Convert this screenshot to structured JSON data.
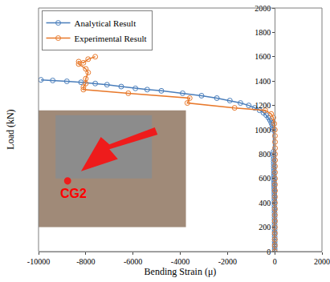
{
  "chart_data": {
    "type": "line",
    "x_label": "Bending Strain (μ)",
    "y_label": "Load (kN)",
    "xlim": [
      -10000,
      2000
    ],
    "xticks": [
      -10000,
      -8000,
      -6000,
      -4000,
      -2000,
      0,
      2000
    ],
    "ylim": [
      0,
      2000
    ],
    "yticks": [
      0,
      200,
      400,
      600,
      800,
      1000,
      1200,
      1400,
      1600,
      1800,
      2000
    ],
    "grid": false,
    "legend": "top-left",
    "series": [
      {
        "name": "Analytical Result",
        "color": "#4a7ebb",
        "marker": "circle-open",
        "line_style": "solid",
        "x": [
          0,
          -1,
          -1,
          -2,
          -2,
          -3,
          -3,
          -4,
          -4,
          -5,
          -5,
          -6,
          -6,
          -7,
          -7,
          -8,
          -8,
          -9,
          -10,
          -11,
          -12,
          -13,
          -14,
          -15,
          -16,
          -18,
          -20,
          -22,
          -24,
          -26,
          -28,
          -30,
          -32,
          -34,
          -36,
          -38,
          -40,
          -42,
          -44,
          -46,
          -48,
          -50,
          -60,
          -80,
          -110,
          -150,
          -200,
          -270,
          -360,
          -480,
          -640,
          -850,
          -1100,
          -1450,
          -1900,
          -2450,
          -3100,
          -3900,
          -4800,
          -5400,
          -5900,
          -6500,
          -7100,
          -7600,
          -8200,
          -8800,
          -9400,
          -9900
        ],
        "y": [
          0,
          20,
          40,
          60,
          80,
          100,
          120,
          140,
          160,
          180,
          200,
          220,
          240,
          260,
          280,
          300,
          320,
          340,
          360,
          380,
          400,
          420,
          440,
          460,
          480,
          500,
          520,
          540,
          560,
          580,
          600,
          620,
          640,
          660,
          680,
          700,
          720,
          740,
          760,
          780,
          800,
          820,
          1000,
          1020,
          1040,
          1060,
          1080,
          1100,
          1120,
          1140,
          1160,
          1180,
          1200,
          1220,
          1240,
          1260,
          1280,
          1300,
          1320,
          1330,
          1340,
          1355,
          1370,
          1380,
          1390,
          1398,
          1405,
          1410
        ]
      },
      {
        "name": "Experimental Result",
        "color": "#e8792b",
        "marker": "circle-open",
        "line_style": "solid",
        "x": [
          0,
          2,
          4,
          5,
          6,
          7,
          8,
          9,
          10,
          10,
          11,
          11,
          12,
          12,
          12,
          13,
          13,
          13,
          12,
          10,
          5,
          -20,
          -60,
          -150,
          -400,
          -1700,
          -3700,
          -3600,
          -6200,
          -8100,
          -8100,
          -8000,
          -8000,
          -7900,
          -8000,
          -8300,
          -8300,
          -8100,
          -7900,
          -7600
        ],
        "y": [
          0,
          50,
          100,
          150,
          200,
          250,
          300,
          350,
          400,
          450,
          500,
          550,
          600,
          650,
          700,
          750,
          800,
          850,
          900,
          950,
          1000,
          1050,
          1100,
          1130,
          1160,
          1180,
          1220,
          1260,
          1300,
          1330,
          1350,
          1380,
          1420,
          1470,
          1500,
          1540,
          1560,
          1550,
          1580,
          1600
        ]
      }
    ],
    "annotations": [
      {
        "text": "CG2",
        "color": "#ff0000"
      }
    ]
  }
}
